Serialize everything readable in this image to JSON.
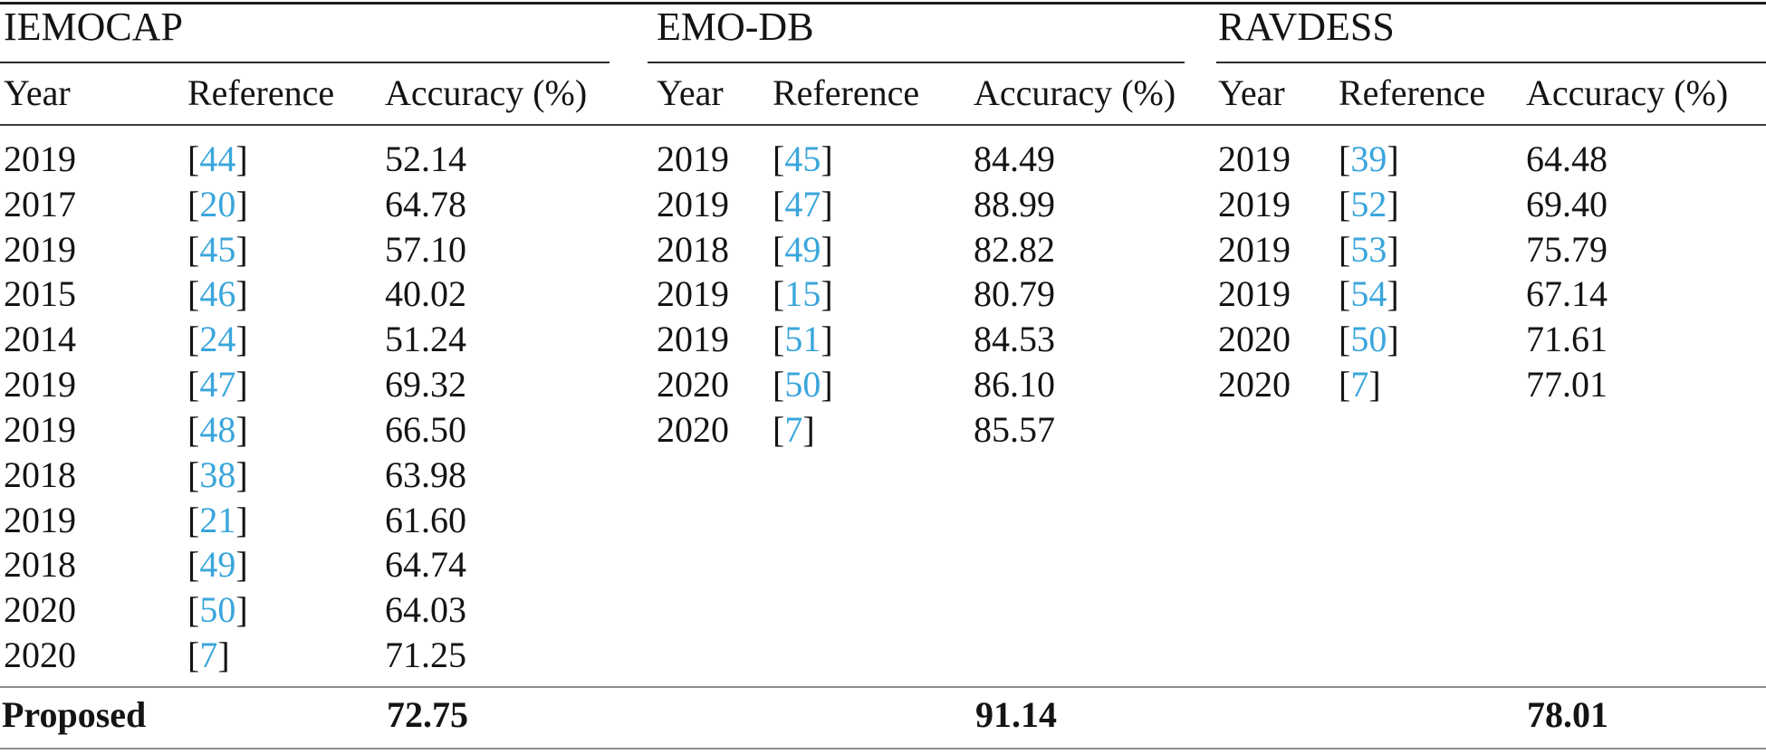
{
  "accent_color": "#3aa6dc",
  "tables": [
    {
      "title": "IEMOCAP",
      "columns": [
        "Year",
        "Reference",
        "Accuracy (%)"
      ],
      "rows": [
        {
          "year": "2019",
          "ref": "44",
          "accuracy": "52.14"
        },
        {
          "year": "2017",
          "ref": "20",
          "accuracy": "64.78"
        },
        {
          "year": "2019",
          "ref": "45",
          "accuracy": "57.10"
        },
        {
          "year": "2015",
          "ref": "46",
          "accuracy": "40.02"
        },
        {
          "year": "2014",
          "ref": "24",
          "accuracy": "51.24"
        },
        {
          "year": "2019",
          "ref": "47",
          "accuracy": "69.32"
        },
        {
          "year": "2019",
          "ref": "48",
          "accuracy": "66.50"
        },
        {
          "year": "2018",
          "ref": "38",
          "accuracy": "63.98"
        },
        {
          "year": "2019",
          "ref": "21",
          "accuracy": "61.60"
        },
        {
          "year": "2018",
          "ref": "49",
          "accuracy": "64.74"
        },
        {
          "year": "2020",
          "ref": "50",
          "accuracy": "64.03"
        },
        {
          "year": "2020",
          "ref": "7",
          "accuracy": "71.25"
        }
      ]
    },
    {
      "title": "EMO-DB",
      "columns": [
        "Year",
        "Reference",
        "Accuracy (%)"
      ],
      "rows": [
        {
          "year": "2019",
          "ref": "45",
          "accuracy": "84.49"
        },
        {
          "year": "2019",
          "ref": "47",
          "accuracy": "88.99"
        },
        {
          "year": "2018",
          "ref": "49",
          "accuracy": "82.82"
        },
        {
          "year": "2019",
          "ref": "15",
          "accuracy": "80.79"
        },
        {
          "year": "2019",
          "ref": "51",
          "accuracy": "84.53"
        },
        {
          "year": "2020",
          "ref": "50",
          "accuracy": "86.10"
        },
        {
          "year": "2020",
          "ref": "7",
          "accuracy": "85.57"
        }
      ]
    },
    {
      "title": "RAVDESS",
      "columns": [
        "Year",
        "Reference",
        "Accuracy (%)"
      ],
      "rows": [
        {
          "year": "2019",
          "ref": "39",
          "accuracy": "64.48"
        },
        {
          "year": "2019",
          "ref": "52",
          "accuracy": "69.40"
        },
        {
          "year": "2019",
          "ref": "53",
          "accuracy": "75.79"
        },
        {
          "year": "2019",
          "ref": "54",
          "accuracy": "67.14"
        },
        {
          "year": "2020",
          "ref": "50",
          "accuracy": "71.61"
        },
        {
          "year": "2020",
          "ref": "7",
          "accuracy": "77.01"
        }
      ]
    }
  ],
  "footer": {
    "label": "Proposed",
    "values": [
      "72.75",
      "91.14",
      "78.01"
    ]
  }
}
